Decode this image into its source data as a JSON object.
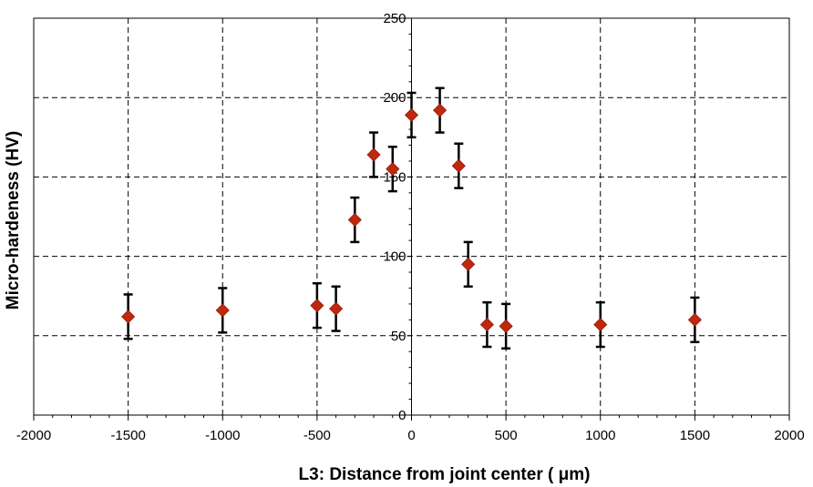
{
  "chart_data": {
    "type": "scatter",
    "title": "",
    "xlabel": "L3: Distance from joint center ( μm)",
    "ylabel": "Micro-hardeness (HV)",
    "xlim": [
      -2000,
      2000
    ],
    "ylim": [
      0,
      250
    ],
    "xticks": [
      -2000,
      -1500,
      -1000,
      -500,
      0,
      500,
      1000,
      1500,
      2000
    ],
    "xtick_labels": [
      "-2000",
      "-1500",
      "-1000",
      "-500",
      "0",
      "500",
      "1000",
      "1500",
      "2000"
    ],
    "yticks": [
      0,
      50,
      100,
      150,
      200,
      250
    ],
    "ytick_labels": [
      "0",
      "50",
      "100",
      "150",
      "200",
      "250"
    ],
    "grid": true,
    "grid_style": "dashed",
    "marker": "diamond",
    "marker_color": "#c0280e",
    "errorbar_color": "#000000",
    "series": [
      {
        "x": [
          -1500,
          -1000,
          -500,
          -400,
          -300,
          -200,
          -100,
          0,
          150,
          250,
          300,
          400,
          500,
          1000,
          1500
        ],
        "y": [
          62,
          66,
          69,
          67,
          123,
          164,
          155,
          189,
          192,
          157,
          95,
          57,
          56,
          57,
          60
        ],
        "error": [
          14,
          14,
          14,
          14,
          14,
          14,
          14,
          14,
          14,
          14,
          14,
          14,
          14,
          14,
          14
        ]
      }
    ]
  }
}
